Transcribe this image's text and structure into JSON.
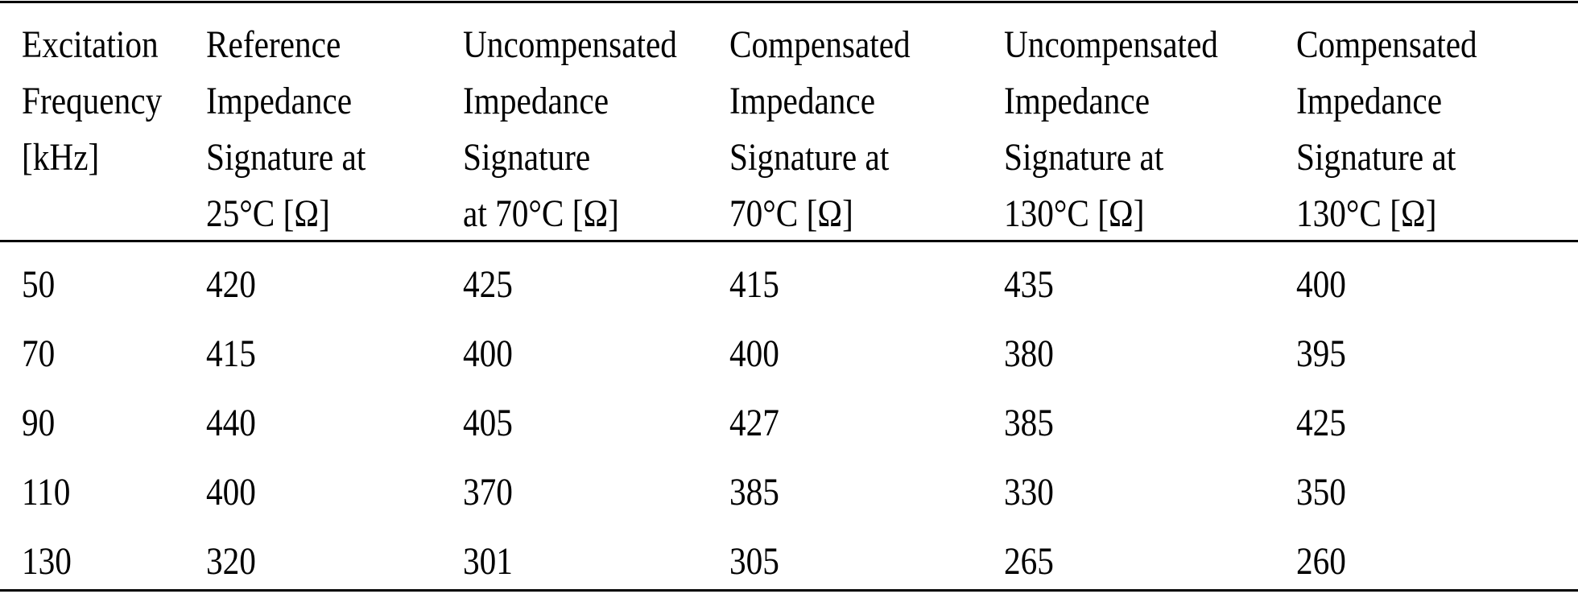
{
  "table": {
    "header": [
      [
        "Excitation",
        "Frequency",
        "[kHz]"
      ],
      [
        "Reference",
        "Impedance",
        "Signature at",
        "25°C [Ω]"
      ],
      [
        "Uncompensated",
        "Impedance",
        "Signature",
        "at 70°C [Ω]"
      ],
      [
        "Compensated",
        "Impedance",
        "Signature at",
        "70°C [Ω]"
      ],
      [
        "Uncompensated",
        "Impedance",
        "Signature at",
        "130°C [Ω]"
      ],
      [
        "Compensated",
        "Impedance",
        "Signature at",
        "130°C [Ω]"
      ]
    ],
    "rows": [
      [
        50,
        420,
        425,
        415,
        435,
        400
      ],
      [
        70,
        415,
        400,
        400,
        380,
        395
      ],
      [
        90,
        440,
        405,
        427,
        385,
        425
      ],
      [
        110,
        400,
        370,
        385,
        330,
        350
      ],
      [
        130,
        320,
        301,
        305,
        265,
        260
      ]
    ]
  }
}
